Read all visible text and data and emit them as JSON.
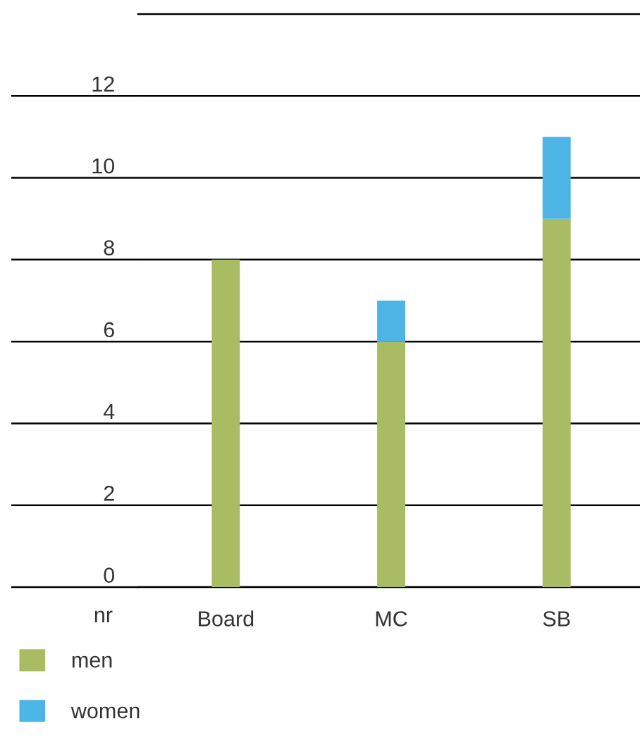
{
  "chart_data": {
    "type": "bar",
    "stacked": true,
    "categories": [
      "Board",
      "MC",
      "SB"
    ],
    "series": [
      {
        "name": "men",
        "color": "#a9bb63",
        "values": [
          8,
          6,
          9
        ]
      },
      {
        "name": "women",
        "color": "#4db5e5",
        "values": [
          0,
          1,
          2
        ]
      }
    ],
    "ylabel": "nr",
    "ylim": [
      0,
      14
    ],
    "yticks": [
      0,
      2,
      4,
      6,
      8,
      10,
      12
    ],
    "grid": "y",
    "legend": "bottom left"
  }
}
